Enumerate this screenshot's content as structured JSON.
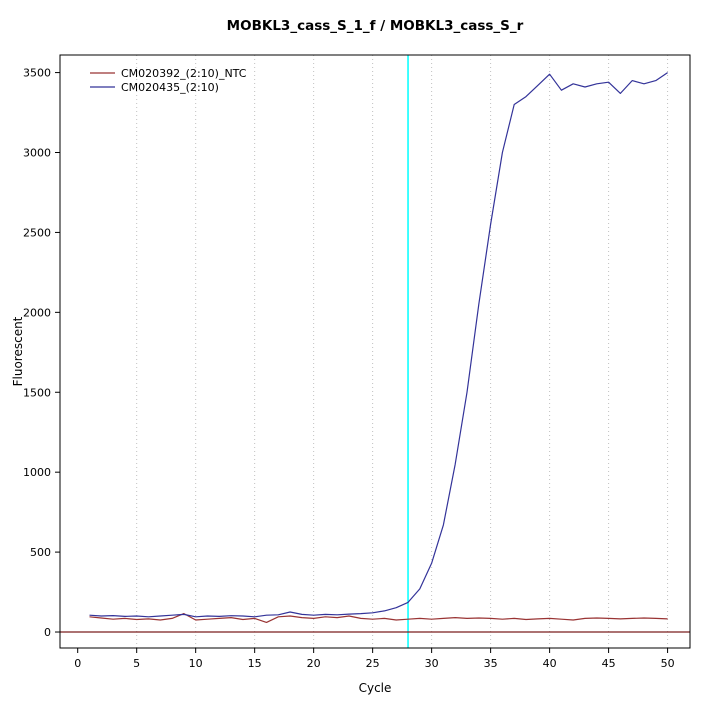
{
  "chart_data": {
    "type": "line",
    "title": "MOBKL3_cass_S_1_f / MOBKL3_cass_S_r",
    "xlabel": "Cycle",
    "ylabel": "Fluorescent",
    "xlim": [
      -1.5,
      51.9
    ],
    "ylim": [
      -100,
      3610
    ],
    "x_ticks": [
      0,
      5,
      10,
      15,
      20,
      25,
      30,
      35,
      40,
      45,
      50
    ],
    "y_ticks": [
      0,
      500,
      1000,
      1500,
      2000,
      2500,
      3000,
      3500
    ],
    "grid": "vertical-dotted",
    "grid_x_positions": [
      5,
      10,
      15,
      20,
      25,
      30,
      35,
      40,
      45,
      50
    ],
    "grid_color": "#c0c0c0",
    "threshold_line_y": 0,
    "threshold_line_color": "#7a1f1f",
    "ct_line_x": 28,
    "ct_line_color": "#00ffff",
    "legend_position": "top-left",
    "x": [
      1,
      2,
      3,
      4,
      5,
      6,
      7,
      8,
      9,
      10,
      11,
      12,
      13,
      14,
      15,
      16,
      17,
      18,
      19,
      20,
      21,
      22,
      23,
      24,
      25,
      26,
      27,
      28,
      29,
      30,
      31,
      32,
      33,
      34,
      35,
      36,
      37,
      38,
      39,
      40,
      41,
      42,
      43,
      44,
      45,
      46,
      47,
      48,
      49,
      50
    ],
    "series": [
      {
        "name": "CM020392_(2:10)_NTC",
        "color": "#993333",
        "values": [
          95,
          88,
          80,
          85,
          78,
          82,
          75,
          85,
          115,
          75,
          80,
          85,
          90,
          78,
          85,
          60,
          95,
          100,
          90,
          85,
          95,
          90,
          100,
          85,
          80,
          85,
          75,
          80,
          85,
          80,
          85,
          90,
          85,
          88,
          85,
          80,
          85,
          78,
          82,
          85,
          80,
          75,
          85,
          88,
          85,
          82,
          85,
          88,
          85,
          82
        ]
      },
      {
        "name": "CM020435_(2:10)",
        "color": "#333399",
        "values": [
          105,
          100,
          103,
          98,
          100,
          95,
          100,
          105,
          110,
          95,
          100,
          98,
          102,
          100,
          95,
          105,
          108,
          125,
          110,
          105,
          110,
          108,
          112,
          115,
          120,
          132,
          152,
          185,
          270,
          430,
          670,
          1050,
          1500,
          2050,
          2550,
          3000,
          3300,
          3350,
          3420,
          3490,
          3390,
          3430,
          3410,
          3430,
          3440,
          3370,
          3450,
          3430,
          3450,
          3500
        ]
      }
    ]
  }
}
